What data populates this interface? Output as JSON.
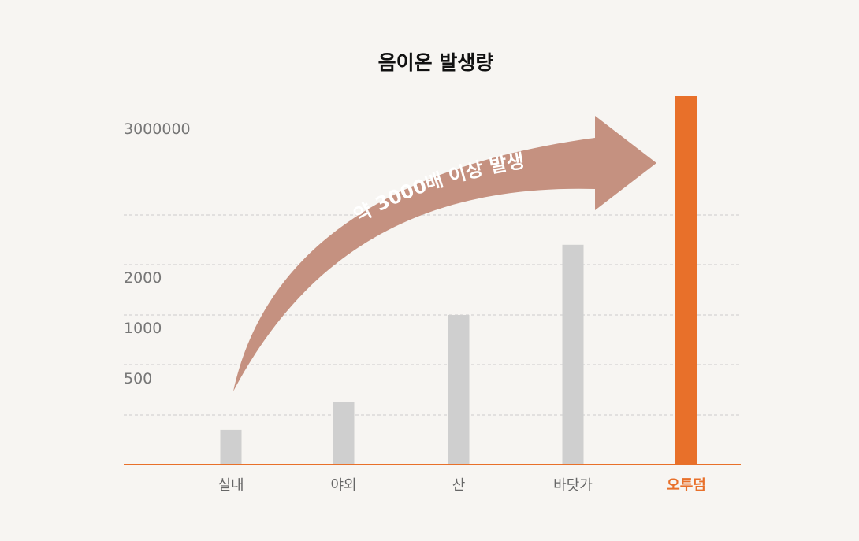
{
  "chart_data": {
    "type": "bar",
    "title": "음이온 발생량",
    "categories": [
      "실내",
      "야외",
      "산",
      "바닷가",
      "오투덤"
    ],
    "values": [
      70,
      200,
      1000,
      2200,
      3000000
    ],
    "highlight_index": 4,
    "y_tick_labels": [
      "3000000",
      "2000",
      "1000",
      "500"
    ],
    "xlabel": "",
    "ylabel": "",
    "grid": true,
    "annotation": "약 3000배 이상 발생",
    "colors": {
      "bar": "#cfcfcf",
      "highlight_bar": "#e8702a",
      "axis": "#e8702a",
      "arrow": "#c59180",
      "grid": "#cccccc",
      "background": "#f7f5f2"
    }
  }
}
